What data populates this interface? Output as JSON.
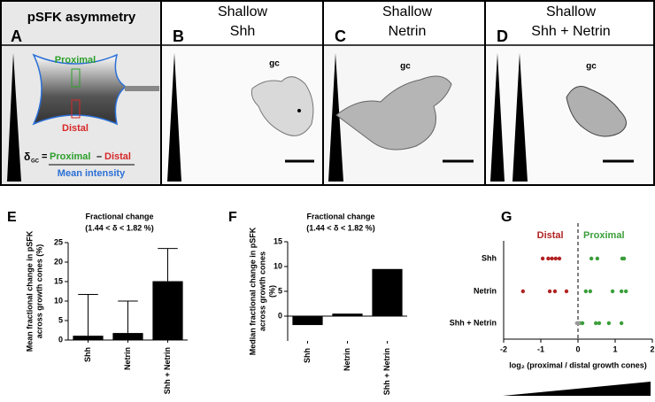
{
  "panels": [
    {
      "label": "A",
      "title": "pSFK asymmetry",
      "proximal": "Proximal",
      "distal": "Distal",
      "formula": {
        "delta": "δ",
        "subscript": "GC",
        "equals": "=",
        "left": "Proximal",
        "minus": "–",
        "right": "Distal",
        "denominator": "Mean intensity"
      }
    },
    {
      "label": "B",
      "title": [
        "Shallow",
        "Shh"
      ],
      "annotation": "gc"
    },
    {
      "label": "C",
      "title": [
        "Shallow",
        "Netrin"
      ],
      "annotation": "gc"
    },
    {
      "label": "D",
      "title": [
        "Shallow",
        "Shh + Netrin"
      ],
      "annotation": "gc"
    }
  ],
  "chart_data": [
    {
      "type": "bar",
      "panel_label": "E",
      "title": "Fractional change",
      "subtitle": "(1.44 < δ < 1.82 %)",
      "ylabel": [
        "Mean fractional change in pSFK",
        "across growth cones (%)"
      ],
      "categories": [
        "Shh",
        "Netrin",
        "Shh + Netrin"
      ],
      "values": [
        1.1,
        1.8,
        15.1
      ],
      "errors": [
        10.6,
        8.2,
        8.4
      ],
      "color": "#000000",
      "ylim": [
        0,
        25
      ],
      "yticks": [
        0,
        5,
        10,
        15,
        20,
        25
      ]
    },
    {
      "type": "bar",
      "panel_label": "F",
      "title": "Fractional change",
      "subtitle": "(1.44 < δ < 1.82 %)",
      "ylabel": [
        "Median fractional change in pSFK",
        "across growth cones",
        "(%)"
      ],
      "categories": [
        "Shh",
        "Netrin",
        "Shh + Netrin"
      ],
      "values": [
        -1.8,
        0.5,
        9.5
      ],
      "color": "#000000",
      "ylim": [
        -5,
        15
      ],
      "yticks": [
        0,
        5,
        10,
        15
      ]
    },
    {
      "type": "scatter",
      "panel_label": "G",
      "xlabel": "log₂ (proximal / distal growth cones)",
      "categories": [
        "Shh",
        "Netrin",
        "Shh + Netrin"
      ],
      "xlim": [
        -2,
        2
      ],
      "xticks": [
        -2,
        -1,
        0,
        1,
        2
      ],
      "series": [
        {
          "name": "Distal",
          "color": "#b22222",
          "values": [
            [
              -0.95,
              -0.8,
              -0.7,
              -0.6,
              -0.5
            ],
            [
              -1.48,
              -0.76,
              -0.62,
              -0.31
            ],
            []
          ]
        },
        {
          "name": "Proximal",
          "color": "#3a9e3a",
          "values": [
            [
              0.36,
              0.52,
              1.19,
              1.24
            ],
            [
              0.21,
              0.33,
              0.93,
              1.17,
              1.29
            ],
            [
              0.05,
              0.12,
              0.48,
              0.57,
              0.83,
              1.17
            ]
          ]
        },
        {
          "color": "#999999",
          "values": [
            [],
            [],
            [
              -0.03,
              0.0,
              0.02
            ]
          ]
        }
      ]
    }
  ]
}
